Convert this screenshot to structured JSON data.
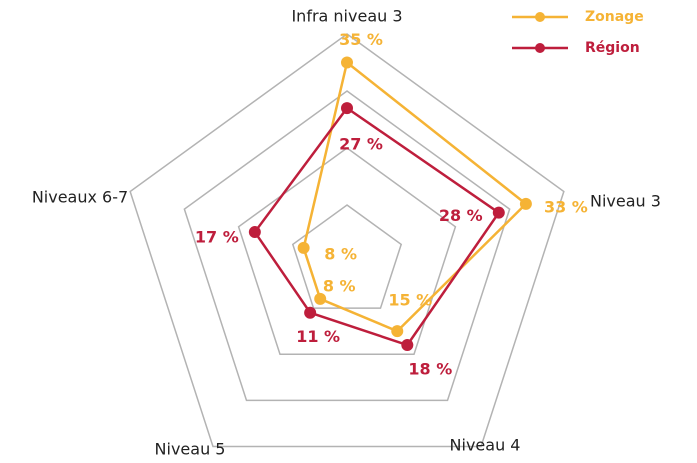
{
  "chart_data": {
    "type": "radar",
    "categories": [
      "Infra niveau 3",
      "Niveau 3",
      "Niveau 4",
      "Niveau 5",
      "Niveaux 6-7"
    ],
    "series": [
      {
        "name": "Zonage",
        "color": "#f5b335",
        "values": [
          35,
          33,
          15,
          8,
          8
        ],
        "value_labels": [
          "35 %",
          "33 %",
          "15 %",
          "8 %",
          "8 %"
        ]
      },
      {
        "name": "Région",
        "color": "#be1e3c",
        "values": [
          27,
          28,
          18,
          11,
          17
        ],
        "value_labels": [
          "27 %",
          "28 %",
          "18 %",
          "11 %",
          "17 %"
        ]
      }
    ],
    "ylim": [
      0,
      40
    ],
    "yticks": [
      10,
      20,
      30,
      40
    ],
    "grid": true,
    "legend": "top-right"
  }
}
